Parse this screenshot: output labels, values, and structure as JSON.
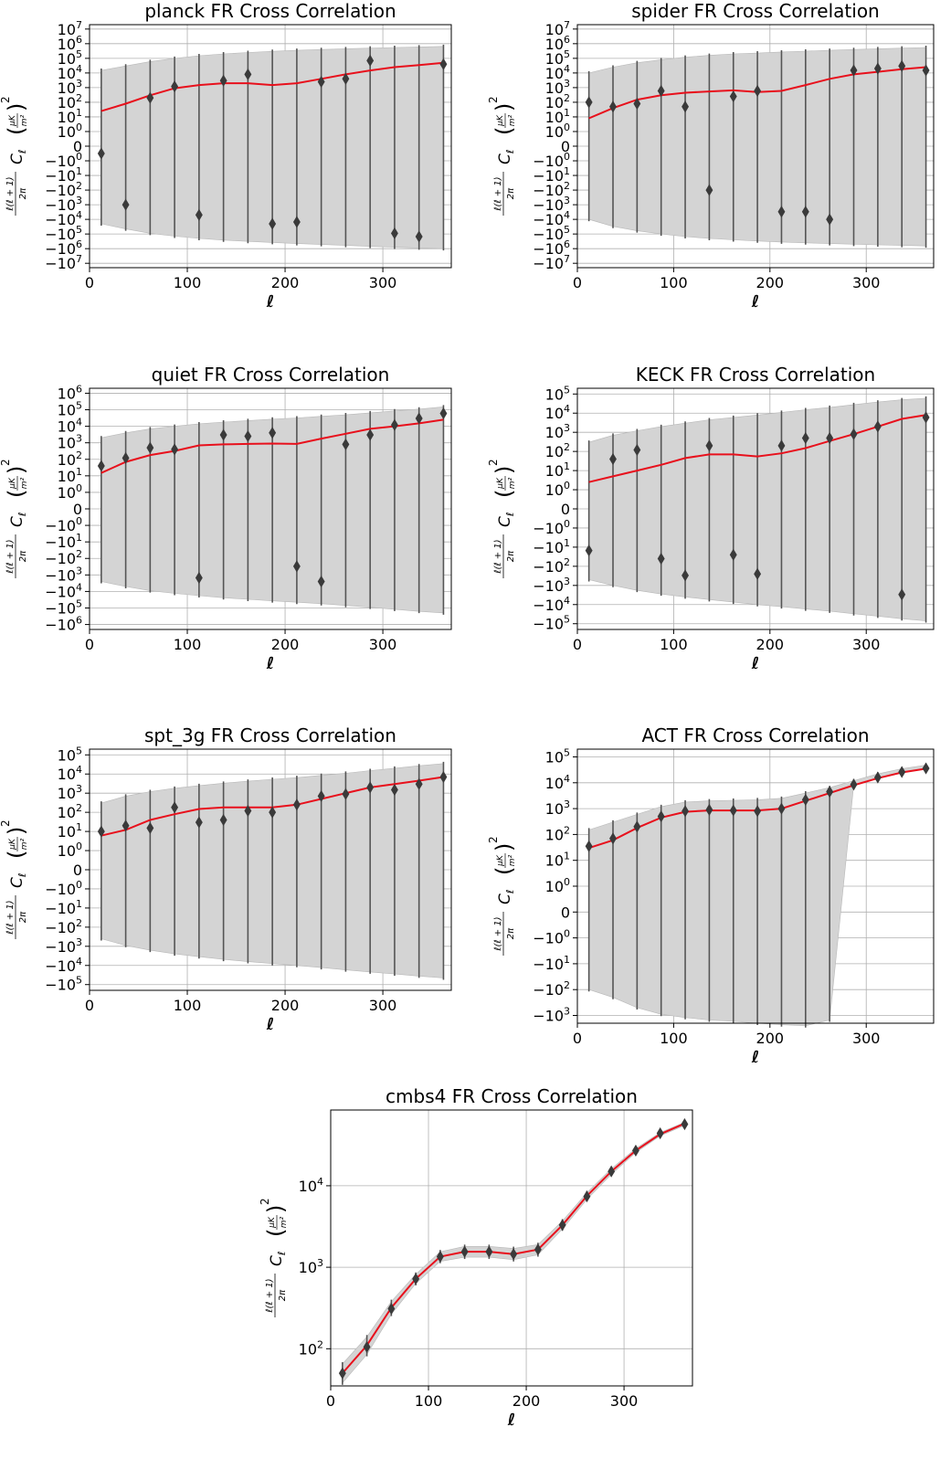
{
  "figure": {
    "xlabel": "ℓ",
    "ylabel_parts": {
      "prefix": "ℓ(ℓ + 1)",
      "den": "2π",
      "cl": "C",
      "sub": "ℓ",
      "unit_num": "μK",
      "unit_den": "m²",
      "power": "2"
    }
  },
  "colors": {
    "band": "#d4d4d4",
    "band_edge": "#b8b8b8",
    "model": "#e8101c",
    "points": "#3a3a3a",
    "grid": "#b0b0b0"
  },
  "chart_data": [
    {
      "title": "planck FR Cross Correlation",
      "type": "line",
      "yscale": "symlog",
      "x": [
        12,
        37,
        62,
        87,
        112,
        137,
        162,
        187,
        212,
        237,
        262,
        287,
        312,
        337,
        362
      ],
      "series": [
        {
          "values": [
            25,
            80,
            300,
            900,
            1500,
            2000,
            2000,
            1500,
            2000,
            4000,
            8000,
            15000,
            25000,
            35000,
            50000
          ]
        },
        {
          "values": [
            -0.5,
            -1000,
            200,
            1200,
            -5000,
            3000,
            8000,
            -20000,
            -15000,
            2500,
            4000,
            70000,
            -90000,
            -150000,
            40000
          ]
        }
      ],
      "band_upper": [
        15000,
        30000,
        60000,
        100000,
        150000,
        200000,
        250000,
        300000,
        350000,
        400000,
        450000,
        500000,
        550000,
        600000,
        650000
      ],
      "band_lower": [
        -20000,
        -45000,
        -90000,
        -140000,
        -200000,
        -260000,
        -320000,
        -380000,
        -450000,
        -520000,
        -600000,
        -700000,
        -800000,
        -900000,
        -1000000
      ],
      "xlim": [
        0,
        370
      ],
      "yticks": [
        "10⁷",
        "10⁶",
        "10⁵",
        "10⁴",
        "10³",
        "10²",
        "10¹",
        "10⁰",
        "0",
        "−10⁰",
        "−10¹",
        "−10²",
        "−10³",
        "−10⁴",
        "−10⁵",
        "−10⁶",
        "−10⁷"
      ],
      "xticks": [
        "0",
        "100",
        "200",
        "300"
      ]
    },
    {
      "title": "spider FR Cross Correlation",
      "type": "line",
      "yscale": "symlog",
      "x": [
        12,
        37,
        62,
        87,
        112,
        137,
        162,
        187,
        212,
        237,
        262,
        287,
        312,
        337,
        362
      ],
      "series": [
        {
          "values": [
            8,
            40,
            150,
            300,
            450,
            550,
            650,
            500,
            600,
            1500,
            4000,
            8000,
            12000,
            18000,
            25000
          ]
        },
        {
          "values": [
            100,
            50,
            80,
            600,
            50,
            -100,
            250,
            600,
            -3000,
            -3000,
            -10000,
            15000,
            20000,
            30000,
            15000
          ]
        }
      ],
      "band_upper": [
        10000,
        25000,
        50000,
        80000,
        120000,
        160000,
        200000,
        230000,
        270000,
        310000,
        350000,
        400000,
        450000,
        500000,
        550000
      ],
      "band_lower": [
        -10000,
        -30000,
        -60000,
        -100000,
        -150000,
        -200000,
        -250000,
        -300000,
        -350000,
        -400000,
        -450000,
        -500000,
        -550000,
        -600000,
        -650000
      ],
      "xlim": [
        0,
        370
      ],
      "yticks": [
        "10⁷",
        "10⁶",
        "10⁵",
        "10⁴",
        "10³",
        "10²",
        "10¹",
        "10⁰",
        "0",
        "−10⁰",
        "−10¹",
        "−10²",
        "−10³",
        "−10⁴",
        "−10⁵",
        "−10⁶",
        "−10⁷"
      ],
      "xticks": [
        "0",
        "100",
        "200",
        "300"
      ]
    },
    {
      "title": "quiet FR Cross Correlation",
      "type": "line",
      "yscale": "symlog",
      "x": [
        12,
        37,
        62,
        87,
        112,
        137,
        162,
        187,
        212,
        237,
        262,
        287,
        312,
        337,
        362
      ],
      "series": [
        {
          "values": [
            15,
            70,
            180,
            320,
            700,
            800,
            850,
            900,
            850,
            1800,
            3500,
            7000,
            10000,
            15000,
            25000
          ]
        },
        {
          "values": [
            40,
            120,
            500,
            400,
            -1500,
            3000,
            2500,
            4000,
            -300,
            -2500,
            800,
            3000,
            12000,
            30000,
            60000
          ]
        }
      ],
      "band_upper": [
        2000,
        4000,
        7000,
        10000,
        14000,
        18000,
        22000,
        27000,
        32000,
        40000,
        50000,
        65000,
        85000,
        110000,
        150000
      ],
      "band_lower": [
        -2500,
        -5000,
        -9000,
        -13000,
        -18000,
        -24000,
        -30000,
        -37000,
        -45000,
        -55000,
        -70000,
        -90000,
        -120000,
        -160000,
        -200000
      ],
      "xlim": [
        0,
        370
      ],
      "yticks": [
        "10⁶",
        "10⁵",
        "10⁴",
        "10³",
        "10²",
        "10¹",
        "10⁰",
        "0",
        "−10⁰",
        "−10¹",
        "−10²",
        "−10³",
        "−10⁴",
        "−10⁵",
        "−10⁶"
      ],
      "xticks": [
        "0",
        "100",
        "200",
        "300"
      ]
    },
    {
      "title": "KECK FR Cross Correlation",
      "type": "line",
      "yscale": "symlog",
      "x": [
        12,
        37,
        62,
        87,
        112,
        137,
        162,
        187,
        212,
        237,
        262,
        287,
        312,
        337,
        362
      ],
      "series": [
        {
          "values": [
            2.5,
            5,
            10,
            20,
            45,
            70,
            70,
            55,
            80,
            150,
            350,
            800,
            2000,
            5000,
            8000
          ]
        },
        {
          "values": [
            -15,
            40,
            120,
            -40,
            -300,
            200,
            -25,
            -250,
            200,
            500,
            500,
            800,
            2000,
            -3000,
            6000
          ]
        }
      ],
      "band_upper": [
        300,
        700,
        1200,
        2000,
        3000,
        4500,
        6000,
        8000,
        11000,
        15000,
        20000,
        28000,
        38000,
        50000,
        60000
      ],
      "band_lower": [
        -500,
        -1000,
        -1800,
        -2800,
        -4000,
        -5500,
        -7500,
        -10000,
        -13000,
        -17000,
        -22000,
        -30000,
        -40000,
        -55000,
        -70000
      ],
      "xlim": [
        0,
        370
      ],
      "yticks": [
        "10⁵",
        "10⁴",
        "10³",
        "10²",
        "10¹",
        "10⁰",
        "0",
        "−10⁰",
        "−10¹",
        "−10²",
        "−10³",
        "−10⁴",
        "−10⁵"
      ],
      "xticks": [
        "0",
        "100",
        "200",
        "300"
      ]
    },
    {
      "title": "spt_3g FR Cross Correlation",
      "type": "line",
      "yscale": "symlog",
      "x": [
        12,
        37,
        62,
        87,
        112,
        137,
        162,
        187,
        212,
        237,
        262,
        287,
        312,
        337,
        362
      ],
      "series": [
        {
          "values": [
            6,
            12,
            40,
            80,
            150,
            180,
            180,
            180,
            250,
            500,
            1000,
            2000,
            3000,
            4500,
            7000
          ]
        },
        {
          "values": [
            10,
            20,
            15,
            180,
            30,
            40,
            120,
            100,
            250,
            700,
            900,
            2000,
            1500,
            3000,
            7000
          ]
        }
      ],
      "band_upper": [
        300,
        700,
        1200,
        1800,
        2500,
        3300,
        4200,
        5300,
        6500,
        8500,
        11000,
        15000,
        20000,
        27000,
        35000
      ],
      "band_lower": [
        -400,
        -900,
        -1600,
        -2500,
        -3500,
        -4800,
        -6300,
        -8000,
        -10000,
        -13000,
        -17000,
        -22000,
        -28000,
        -36000,
        -45000
      ],
      "xlim": [
        0,
        370
      ],
      "yticks": [
        "10⁵",
        "10⁴",
        "10³",
        "10²",
        "10¹",
        "10⁰",
        "0",
        "−10⁰",
        "−10¹",
        "−10²",
        "−10³",
        "−10⁴",
        "−10⁵"
      ],
      "xticks": [
        "0",
        "100",
        "200",
        "300"
      ]
    },
    {
      "title": "ACT FR Cross Correlation",
      "type": "line",
      "yscale": "symlog",
      "x": [
        12,
        37,
        62,
        87,
        112,
        137,
        162,
        187,
        212,
        237,
        262,
        287,
        312,
        337,
        362
      ],
      "series": [
        {
          "values": [
            30,
            60,
            180,
            450,
            750,
            850,
            850,
            850,
            1000,
            2000,
            4000,
            8000,
            15000,
            25000,
            35000
          ]
        },
        {
          "values": [
            35,
            70,
            200,
            500,
            800,
            900,
            850,
            800,
            1000,
            2200,
            4500,
            8500,
            16000,
            26000,
            36000
          ]
        }
      ],
      "band_upper": [
        150,
        300,
        600,
        1200,
        1800,
        2000,
        2100,
        2200,
        2500,
        4000,
        6500,
        12000,
        22000,
        35000,
        48000
      ],
      "band_lower": [
        -100,
        -200,
        -500,
        -900,
        -1200,
        -1500,
        -1700,
        -2000,
        -2300,
        -2500,
        -1500,
        8000,
        15000,
        25000,
        35000
      ],
      "xlim": [
        0,
        370
      ],
      "yticks": [
        "10⁵",
        "10⁴",
        "10³",
        "10²",
        "10¹",
        "10⁰",
        "0",
        "−10⁰",
        "−10¹",
        "−10²",
        "−10³"
      ],
      "xticks": [
        "0",
        "100",
        "200",
        "300"
      ]
    },
    {
      "title": "cmbs4 FR Cross Correlation",
      "type": "line",
      "yscale": "log",
      "x": [
        12,
        37,
        62,
        87,
        112,
        137,
        162,
        187,
        212,
        237,
        262,
        287,
        312,
        337,
        362
      ],
      "series": [
        {
          "values": [
            50,
            110,
            320,
            720,
            1350,
            1550,
            1550,
            1450,
            1650,
            3300,
            7500,
            15000,
            27000,
            43000,
            58000
          ]
        },
        {
          "values": [
            50,
            105,
            310,
            720,
            1350,
            1550,
            1550,
            1450,
            1650,
            3300,
            7400,
            15000,
            27000,
            44000,
            57000
          ]
        }
      ],
      "band_upper": [
        65,
        140,
        380,
        820,
        1550,
        1800,
        1800,
        1700,
        1900,
        3700,
        8200,
        16200,
        28500,
        45000,
        60000
      ],
      "band_lower": [
        38,
        85,
        265,
        630,
        1180,
        1330,
        1330,
        1240,
        1420,
        2950,
        6800,
        13800,
        25500,
        41000,
        55000
      ],
      "xlim": [
        0,
        370
      ],
      "yticks": [
        "10⁴",
        "10³",
        "10²"
      ],
      "xticks": [
        "0",
        "100",
        "200",
        "300"
      ]
    }
  ]
}
